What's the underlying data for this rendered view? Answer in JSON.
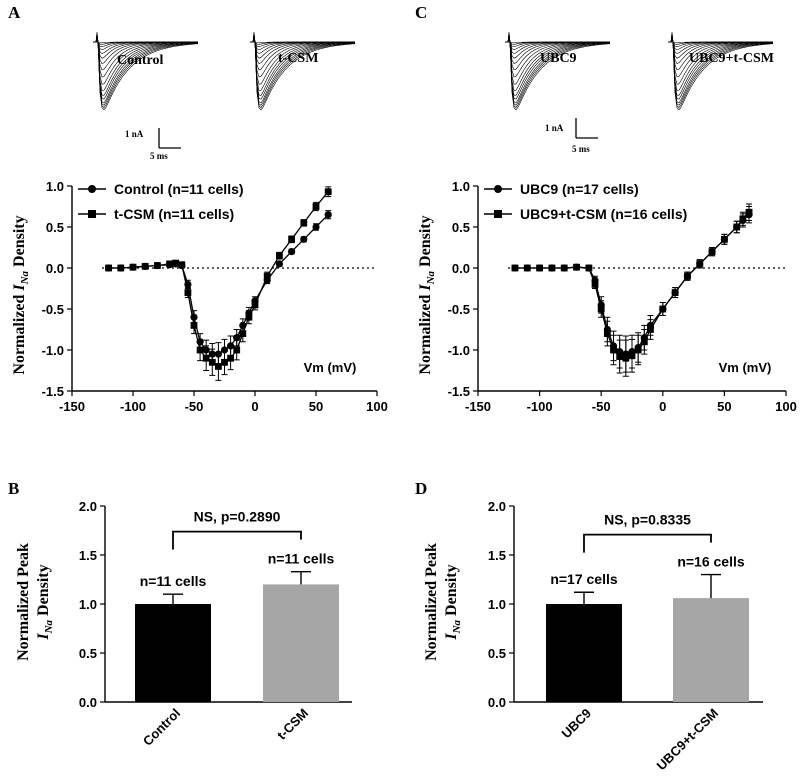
{
  "panel_labels": {
    "a": "A",
    "b": "B",
    "c": "C",
    "d": "D"
  },
  "scale_bar": {
    "current": "1 nA",
    "time": "5 ms"
  },
  "ylabels": {
    "iv_prefix": "Normalized ",
    "iv_i": "I",
    "iv_sub": "Na",
    "iv_suffix": " Density",
    "bar_line1": "Normalized Peak",
    "bar_i": "I",
    "bar_sub": "Na",
    "bar_suffix": " Density"
  },
  "chart_data": [
    {
      "panel": "A",
      "type": "line",
      "trace_labels": [
        "Control",
        "t-CSM"
      ],
      "xlabel": "Vm (mV)",
      "xlim": [
        -150,
        100
      ],
      "ylim": [
        -1.5,
        1.0
      ],
      "xticks": [
        "-150",
        "-100",
        "-50",
        "0",
        "50",
        "100"
      ],
      "yticks": [
        "-1.5",
        "-1.0",
        "-0.5",
        "0.0",
        "0.5",
        "1.0"
      ],
      "series": [
        {
          "name": "Control (n=11 cells)",
          "marker": "circle",
          "x": [
            -120,
            -110,
            -100,
            -90,
            -80,
            -70,
            -65,
            -60,
            -55,
            -50,
            -45,
            -40,
            -35,
            -30,
            -25,
            -20,
            -15,
            -10,
            -5,
            0,
            10,
            20,
            30,
            40,
            50,
            60
          ],
          "y": [
            0.0,
            0.0,
            0.01,
            0.02,
            0.03,
            0.04,
            0.05,
            0.03,
            -0.2,
            -0.6,
            -0.9,
            -1.0,
            -1.05,
            -1.05,
            -1.0,
            -0.95,
            -0.85,
            -0.7,
            -0.55,
            -0.4,
            -0.15,
            0.05,
            0.2,
            0.35,
            0.5,
            0.65
          ],
          "err": [
            0.0,
            0.0,
            0.01,
            0.01,
            0.02,
            0.02,
            0.02,
            0.03,
            0.05,
            0.08,
            0.1,
            0.12,
            0.13,
            0.14,
            0.13,
            0.12,
            0.1,
            0.08,
            0.07,
            0.05,
            0.04,
            0.03,
            0.03,
            0.03,
            0.04,
            0.05
          ]
        },
        {
          "name": "t-CSM (n=11 cells)",
          "marker": "square",
          "x": [
            -120,
            -110,
            -100,
            -90,
            -80,
            -70,
            -65,
            -60,
            -55,
            -50,
            -45,
            -40,
            -35,
            -30,
            -25,
            -20,
            -15,
            -10,
            -5,
            0,
            10,
            20,
            30,
            40,
            50,
            60
          ],
          "y": [
            0.0,
            0.0,
            0.01,
            0.02,
            0.03,
            0.05,
            0.06,
            0.04,
            -0.3,
            -0.7,
            -1.0,
            -1.1,
            -1.15,
            -1.2,
            -1.15,
            -1.1,
            -1.0,
            -0.8,
            -0.6,
            -0.45,
            -0.1,
            0.15,
            0.35,
            0.55,
            0.75,
            0.93
          ],
          "err": [
            0.0,
            0.0,
            0.01,
            0.01,
            0.02,
            0.02,
            0.03,
            0.03,
            0.06,
            0.1,
            0.13,
            0.15,
            0.16,
            0.17,
            0.15,
            0.14,
            0.12,
            0.1,
            0.08,
            0.06,
            0.05,
            0.04,
            0.04,
            0.04,
            0.05,
            0.06
          ]
        }
      ]
    },
    {
      "panel": "C",
      "type": "line",
      "trace_labels": [
        "UBC9",
        "UBC9+t-CSM"
      ],
      "xlabel": "Vm (mV)",
      "xlim": [
        -150,
        100
      ],
      "ylim": [
        -1.5,
        1.0
      ],
      "xticks": [
        "-150",
        "-100",
        "-50",
        "0",
        "50",
        "100"
      ],
      "yticks": [
        "-1.5",
        "-1.0",
        "-0.5",
        "0.0",
        "0.5",
        "1.0"
      ],
      "series": [
        {
          "name": "UBC9 (n=17 cells)",
          "marker": "circle",
          "x": [
            -120,
            -110,
            -100,
            -90,
            -80,
            -70,
            -60,
            -55,
            -50,
            -45,
            -40,
            -35,
            -30,
            -25,
            -20,
            -15,
            -10,
            0,
            10,
            20,
            30,
            40,
            50,
            60,
            65,
            70
          ],
          "y": [
            0.0,
            0.0,
            0.0,
            0.0,
            0.0,
            0.01,
            0.0,
            -0.15,
            -0.45,
            -0.75,
            -0.95,
            -1.02,
            -1.05,
            -1.02,
            -0.97,
            -0.85,
            -0.7,
            -0.5,
            -0.3,
            -0.1,
            0.05,
            0.2,
            0.35,
            0.5,
            0.58,
            0.65
          ],
          "err": [
            0.0,
            0.0,
            0.0,
            0.0,
            0.0,
            0.01,
            0.01,
            0.05,
            0.1,
            0.15,
            0.18,
            0.2,
            0.22,
            0.2,
            0.18,
            0.15,
            0.12,
            0.08,
            0.06,
            0.05,
            0.05,
            0.05,
            0.06,
            0.07,
            0.08,
            0.1
          ]
        },
        {
          "name": "UBC9+t-CSM (n=16 cells)",
          "marker": "square",
          "x": [
            -120,
            -110,
            -100,
            -90,
            -80,
            -70,
            -60,
            -55,
            -50,
            -45,
            -40,
            -35,
            -30,
            -25,
            -20,
            -15,
            -10,
            0,
            10,
            20,
            30,
            40,
            50,
            60,
            65,
            70
          ],
          "y": [
            0.0,
            0.0,
            0.0,
            0.0,
            0.0,
            0.01,
            0.0,
            -0.2,
            -0.5,
            -0.8,
            -1.0,
            -1.08,
            -1.1,
            -1.07,
            -1.0,
            -0.9,
            -0.75,
            -0.5,
            -0.3,
            -0.1,
            0.05,
            0.2,
            0.35,
            0.5,
            0.6,
            0.68
          ],
          "err": [
            0.0,
            0.0,
            0.0,
            0.0,
            0.0,
            0.01,
            0.01,
            0.05,
            0.1,
            0.15,
            0.18,
            0.2,
            0.22,
            0.2,
            0.18,
            0.15,
            0.12,
            0.08,
            0.06,
            0.05,
            0.05,
            0.05,
            0.06,
            0.07,
            0.08,
            0.1
          ]
        }
      ]
    },
    {
      "panel": "B",
      "type": "bar",
      "ylim": [
        0.0,
        2.0
      ],
      "yticks": [
        "0.0",
        "0.5",
        "1.0",
        "1.5",
        "2.0"
      ],
      "categories": [
        "Control",
        "t-CSM"
      ],
      "values": [
        1.0,
        1.2
      ],
      "errors": [
        0.1,
        0.13
      ],
      "colors": [
        "#000000",
        "#a6a6a6"
      ],
      "n_labels": [
        "n=11 cells",
        "n=11 cells"
      ],
      "significance": "NS, p=0.2890"
    },
    {
      "panel": "D",
      "type": "bar",
      "ylim": [
        0.0,
        2.0
      ],
      "yticks": [
        "0.0",
        "0.5",
        "1.0",
        "1.5",
        "2.0"
      ],
      "categories": [
        "UBC9",
        "UBC9+t-CSM"
      ],
      "values": [
        1.0,
        1.06
      ],
      "errors": [
        0.12,
        0.24
      ],
      "colors": [
        "#000000",
        "#a6a6a6"
      ],
      "n_labels": [
        "n=17 cells",
        "n=16 cells"
      ],
      "significance": "NS, p=0.8335"
    }
  ]
}
